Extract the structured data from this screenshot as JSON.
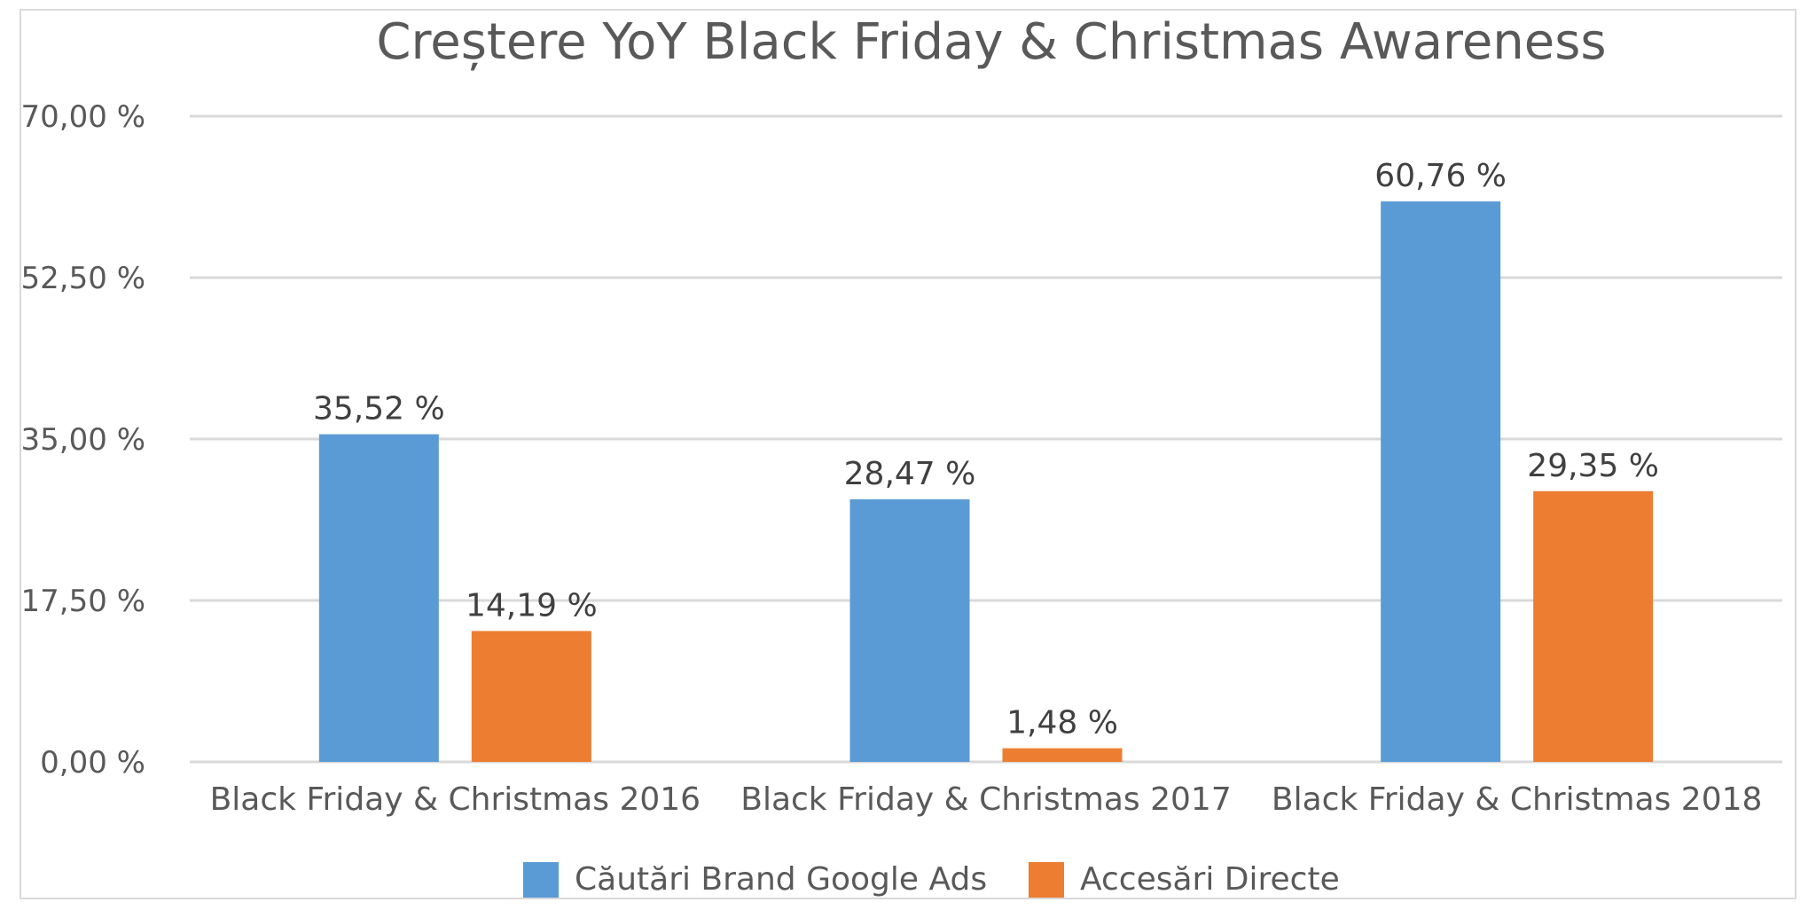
{
  "chart_data": {
    "type": "bar",
    "title": "Creștere YoY Black Friday & Christmas Awareness",
    "xlabel": "",
    "ylabel": "",
    "ylim": [
      0,
      70
    ],
    "yticks": [
      0,
      17.5,
      35,
      52.5,
      70
    ],
    "ytick_labels": [
      "0,00 %",
      "17,50 %",
      "35,00 %",
      "52,50 %",
      "70,00 %"
    ],
    "categories": [
      "Black Friday & Christmas 2016",
      "Black Friday & Christmas 2017",
      "Black Friday & Christmas 2018"
    ],
    "series": [
      {
        "name": "Căutări Brand Google Ads",
        "values": [
          35.52,
          28.47,
          60.76
        ],
        "labels": [
          "35,52 %",
          "28,47 %",
          "60,76 %"
        ],
        "color": "#5b9bd5"
      },
      {
        "name": "Accesări Directe",
        "values": [
          14.19,
          1.48,
          29.35
        ],
        "labels": [
          "14,19 %",
          "1,48 %",
          "29,35 %"
        ],
        "color": "#ed7d31"
      }
    ],
    "grid": true,
    "legend_position": "bottom"
  },
  "colors": {
    "grid": "#d9d9d9",
    "text": "#595959",
    "label": "#404040"
  }
}
